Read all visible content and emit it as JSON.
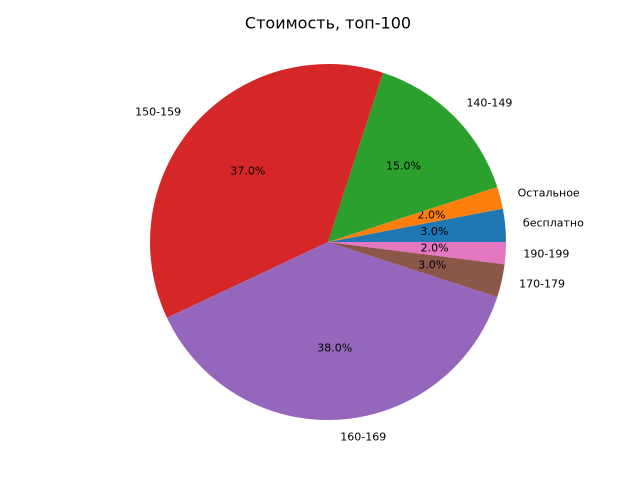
{
  "chart_data": {
    "type": "pie",
    "title": "Стоимость, топ-100",
    "categories": [
      "бесплатно",
      "Остальное",
      "140-149",
      "150-159",
      "160-169",
      "170-179",
      "190-199"
    ],
    "values": [
      3,
      2,
      15,
      37,
      38,
      3,
      2
    ],
    "value_labels": [
      "3.0%",
      "2.0%",
      "15.0%",
      "37.0%",
      "38.0%",
      "3.0%",
      "2.0%"
    ],
    "colors": [
      "#1f77b4",
      "#ff7f0e",
      "#2ca02c",
      "#d62728",
      "#9467bd",
      "#8c564b",
      "#e377c2"
    ]
  }
}
